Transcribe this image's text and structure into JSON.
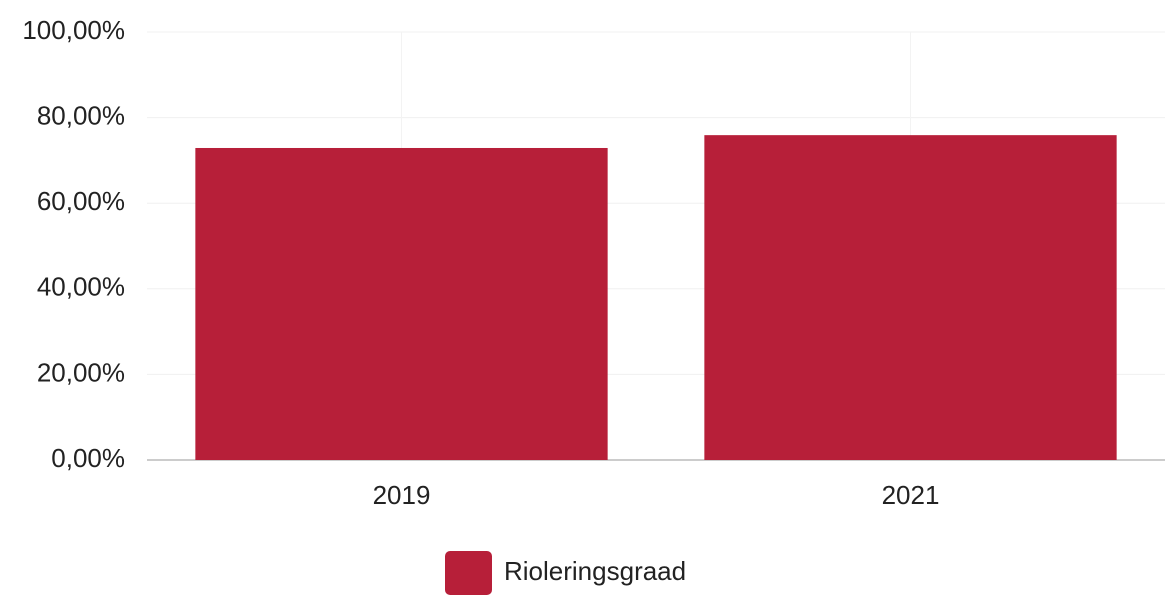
{
  "chart_data": {
    "type": "bar",
    "categories": [
      "2019",
      "2021"
    ],
    "series": [
      {
        "name": "Rioleringsgraad",
        "color": "#b71f39",
        "values": [
          72.9,
          75.9
        ]
      }
    ],
    "ylim": [
      0,
      100
    ],
    "yticks": [
      {
        "value": 0,
        "label": "0,00%"
      },
      {
        "value": 20,
        "label": "20,00%"
      },
      {
        "value": 40,
        "label": "40,00%"
      },
      {
        "value": 60,
        "label": "60,00%"
      },
      {
        "value": 80,
        "label": "80,00%"
      },
      {
        "value": 100,
        "label": "100,00%"
      }
    ],
    "grid": true,
    "legend": "bottom"
  }
}
